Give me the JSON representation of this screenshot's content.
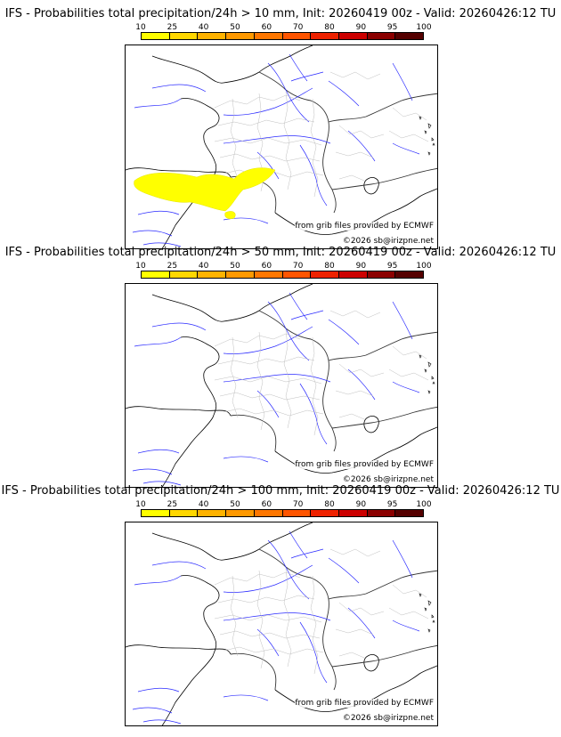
{
  "colorbar": {
    "ticks": [
      "10",
      "25",
      "40",
      "50",
      "60",
      "70",
      "80",
      "90",
      "95",
      "100"
    ],
    "colors": [
      "#ffff00",
      "#ffd700",
      "#ffb300",
      "#ff9900",
      "#ff7700",
      "#ff5500",
      "#ee2200",
      "#cc0000",
      "#8b0000",
      "#550000"
    ]
  },
  "credits": {
    "source": "from grib files provided by ECMWF",
    "copyright": "©2026 sb@irizpne.net"
  },
  "panels": [
    {
      "title": "IFS - Probabilities total precipitation/24h > 10 mm, Init: 20260419 00z - Valid: 20260426:12 TU",
      "precip_area_probability": "10-25",
      "precip_area_color": "#ffff00"
    },
    {
      "title": "IFS - Probabilities total precipitation/24h > 50 mm, Init: 20260419 00z - Valid: 20260426:12 TU"
    },
    {
      "title": "IFS - Probabilities total precipitation/24h > 100 mm, Init: 20260419 00z - Valid: 20260426:12 TU"
    }
  ]
}
